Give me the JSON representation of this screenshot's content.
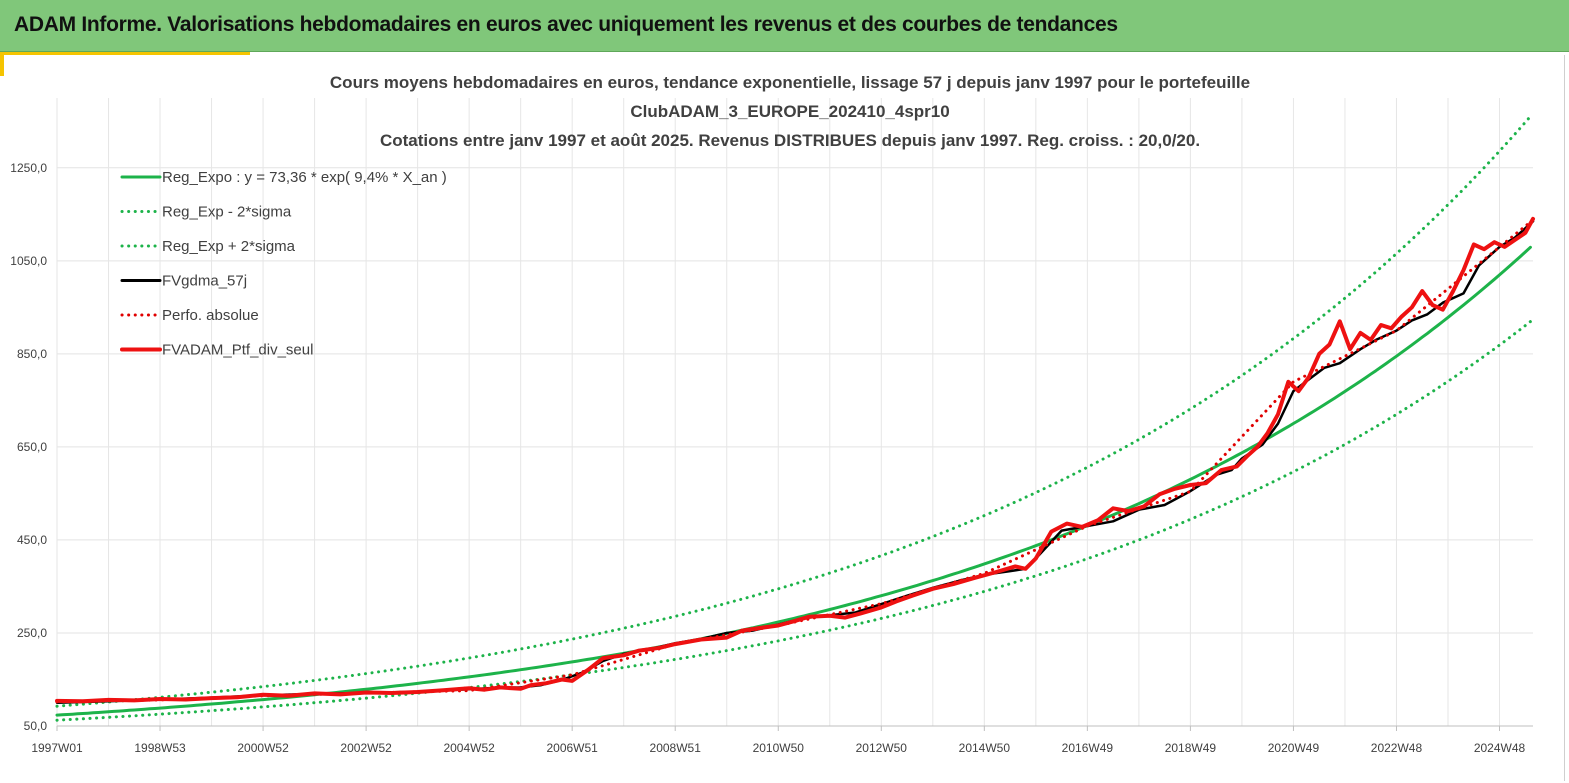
{
  "header": {
    "title": "ADAM Informe. Valorisations hebdomadaires en euros avec uniquement les revenus et des courbes de tendances"
  },
  "chart_data": {
    "type": "line",
    "title_lines": [
      "Cours moyens hebdomadaires  en euros, tendance exponentielle, lissage 57 j depuis janv 1997 pour le portefeuille",
      "ClubADAM_3_EUROPE_202410_4spr10",
      "Cotations  entre janv 1997 et août 2025. Revenus DISTRIBUES depuis janv 1997. Reg. croiss. : 20,0/20."
    ],
    "x_tick_labels": [
      "1997W01",
      "1998W53",
      "2000W52",
      "2002W52",
      "2004W52",
      "2006W51",
      "2008W51",
      "2010W50",
      "2012W50",
      "2014W50",
      "2016W49",
      "2018W49",
      "2020W49",
      "2022W48",
      "2024W48"
    ],
    "x_tick_years": [
      1997,
      1999,
      2001,
      2003,
      2005,
      2007,
      2009,
      2011,
      2013,
      2015,
      2017,
      2019,
      2021,
      2023,
      2025
    ],
    "xlim": [
      1997,
      2025.65
    ],
    "y_tick_labels": [
      "50,0",
      "250,0",
      "450,0",
      "650,0",
      "850,0",
      "1050,0",
      "1250,0"
    ],
    "y_tick_values": [
      50,
      250,
      450,
      650,
      850,
      1050,
      1250
    ],
    "ylim": [
      50,
      1400
    ],
    "grid": true,
    "legend_position": "top-left",
    "series": [
      {
        "name": "Reg_Expo : y = 73,36 * exp( 9,4% *  X_an )",
        "style": "solid",
        "color": "#1db34a",
        "a": 73.36,
        "rate": 0.094,
        "x0": 1997
      },
      {
        "name": "Reg_Exp - 2*sigma",
        "style": "dotted",
        "color": "#1db34a",
        "a": 62.5,
        "rate": 0.094,
        "x0": 1997
      },
      {
        "name": "Reg_Exp + 2*sigma",
        "style": "dotted",
        "color": "#1db34a",
        "a": 92.5,
        "rate": 0.094,
        "x0": 1997
      },
      {
        "name": "FVgdma_57j",
        "style": "solid",
        "color": "#000000",
        "x": [
          1997,
          1998,
          1999,
          2000,
          2001,
          2002,
          2003,
          2004,
          2005,
          2005.5,
          2006,
          2006.4,
          2006.8,
          2007.2,
          2007.6,
          2008,
          2008.5,
          2009,
          2009.5,
          2010,
          2010.5,
          2011,
          2011.5,
          2012,
          2012.5,
          2013,
          2013.5,
          2014,
          2014.5,
          2015,
          2015.5,
          2015.8,
          2016,
          2016.5,
          2017,
          2017.5,
          2018,
          2018.5,
          2019,
          2019.5,
          2019.8,
          2020,
          2020.4,
          2020.7,
          2021,
          2021.3,
          2021.6,
          2021.9,
          2022.3,
          2022.6,
          2023,
          2023.3,
          2023.6,
          2023.9,
          2024.3,
          2024.6,
          2025,
          2025.3,
          2025.65
        ],
        "y": [
          100,
          103,
          107,
          111,
          116,
          119,
          121,
          124,
          129,
          132,
          133,
          138,
          149,
          165,
          190,
          205,
          215,
          228,
          237,
          250,
          255,
          268,
          282,
          288,
          294,
          312,
          330,
          347,
          362,
          375,
          383,
          388,
          410,
          470,
          480,
          490,
          515,
          525,
          555,
          590,
          600,
          625,
          655,
          700,
          770,
          795,
          820,
          830,
          860,
          880,
          900,
          922,
          935,
          960,
          980,
          1040,
          1080,
          1100,
          1135
        ]
      },
      {
        "name": "Perfo. absolue",
        "style": "dotted",
        "color": "#e00000",
        "x": [
          1997,
          1999,
          2001,
          2003,
          2005,
          2007,
          2009,
          2011,
          2013,
          2015,
          2017,
          2019,
          2021,
          2023,
          2025.65
        ],
        "y": [
          102,
          106,
          115,
          121,
          126,
          160,
          226,
          266,
          313,
          378,
          480,
          554,
          790,
          900,
          1138
        ]
      },
      {
        "name": "FVADAM_Ptf_div_seul",
        "style": "solid",
        "color": "#ee1111",
        "x": [
          1997,
          1997.5,
          1998,
          1998.5,
          1999,
          1999.5,
          2000,
          2000.5,
          2001,
          2001.5,
          2002,
          2002.5,
          2003,
          2003.5,
          2004,
          2004.5,
          2005,
          2005.3,
          2005.6,
          2006,
          2006.2,
          2006.5,
          2006.8,
          2007,
          2007.3,
          2007.6,
          2008,
          2008.3,
          2008.7,
          2009,
          2009.5,
          2010,
          2010.3,
          2010.6,
          2011,
          2011.3,
          2011.6,
          2012,
          2012.3,
          2012.6,
          2013,
          2013.3,
          2013.6,
          2014,
          2014.4,
          2014.8,
          2015.2,
          2015.6,
          2015.8,
          2016,
          2016.3,
          2016.6,
          2016.9,
          2017.2,
          2017.5,
          2017.8,
          2018.1,
          2018.4,
          2018.7,
          2019,
          2019.3,
          2019.6,
          2019.9,
          2020.1,
          2020.3,
          2020.5,
          2020.7,
          2020.9,
          2021.1,
          2021.3,
          2021.5,
          2021.7,
          2021.9,
          2022.1,
          2022.3,
          2022.5,
          2022.7,
          2022.9,
          2023.1,
          2023.3,
          2023.5,
          2023.7,
          2023.9,
          2024.1,
          2024.3,
          2024.5,
          2024.7,
          2024.9,
          2025.1,
          2025.3,
          2025.5,
          2025.65
        ],
        "y": [
          104,
          103,
          106,
          105,
          108,
          107,
          110,
          112,
          117,
          115,
          120,
          118,
          122,
          121,
          123,
          127,
          131,
          128,
          133,
          130,
          138,
          142,
          150,
          147,
          170,
          196,
          202,
          212,
          218,
          226,
          236,
          240,
          255,
          260,
          266,
          275,
          285,
          287,
          283,
          292,
          305,
          318,
          330,
          345,
          355,
          368,
          380,
          393,
          388,
          410,
          468,
          485,
          478,
          492,
          518,
          512,
          522,
          548,
          560,
          568,
          572,
          600,
          608,
          630,
          650,
          680,
          720,
          790,
          770,
          800,
          850,
          870,
          920,
          860,
          895,
          880,
          912,
          905,
          930,
          950,
          985,
          955,
          945,
          985,
          1030,
          1085,
          1075,
          1090,
          1080,
          1095,
          1110,
          1140
        ]
      }
    ]
  }
}
